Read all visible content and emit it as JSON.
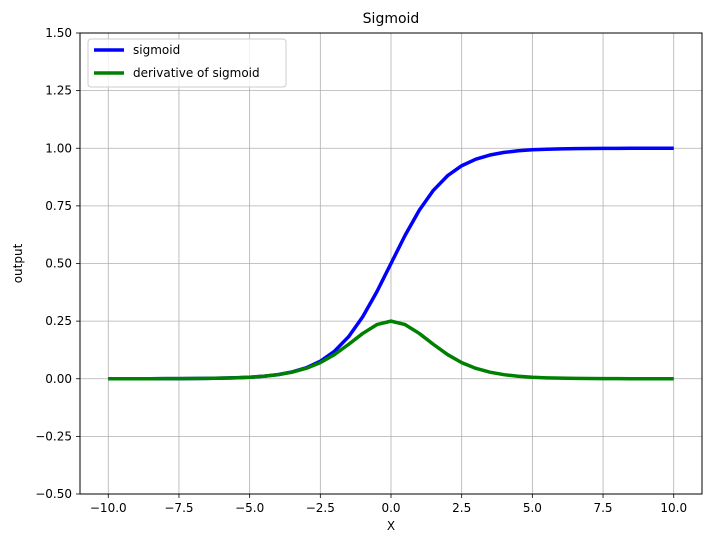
{
  "chart_data": {
    "type": "line",
    "title": "Sigmoid",
    "xlabel": "X",
    "ylabel": "output",
    "xlim": [
      -11.0,
      11.0
    ],
    "ylim": [
      -0.5,
      1.5
    ],
    "x_ticks": [
      -10.0,
      -7.5,
      -5.0,
      -2.5,
      0.0,
      2.5,
      5.0,
      7.5,
      10.0
    ],
    "x_tick_labels": [
      "−10.0",
      "−7.5",
      "−5.0",
      "−2.5",
      "0.0",
      "2.5",
      "5.0",
      "7.5",
      "10.0"
    ],
    "y_ticks": [
      -0.5,
      -0.25,
      0.0,
      0.25,
      0.5,
      0.75,
      1.0,
      1.25,
      1.5
    ],
    "y_tick_labels": [
      "−0.50",
      "−0.25",
      "0.00",
      "0.25",
      "0.50",
      "0.75",
      "1.00",
      "1.25",
      "1.50"
    ],
    "grid": true,
    "legend_position": "top-left",
    "x": [
      -10,
      -9.5,
      -9,
      -8.5,
      -8,
      -7.5,
      -7,
      -6.5,
      -6,
      -5.5,
      -5,
      -4.5,
      -4,
      -3.5,
      -3,
      -2.5,
      -2,
      -1.5,
      -1,
      -0.5,
      0,
      0.5,
      1,
      1.5,
      2,
      2.5,
      3,
      3.5,
      4,
      4.5,
      5,
      5.5,
      6,
      6.5,
      7,
      7.5,
      8,
      8.5,
      9,
      9.5,
      10
    ],
    "series": [
      {
        "name": "sigmoid",
        "color": "#0000ff",
        "values": [
          5e-05,
          7e-05,
          0.00012,
          0.0002,
          0.00034,
          0.00055,
          0.00091,
          0.0015,
          0.00247,
          0.00407,
          0.00669,
          0.01099,
          0.01799,
          0.02931,
          0.04743,
          0.07586,
          0.1192,
          0.18243,
          0.26894,
          0.37754,
          0.5,
          0.62246,
          0.73106,
          0.81757,
          0.8808,
          0.92414,
          0.95257,
          0.97069,
          0.98201,
          0.98901,
          0.99331,
          0.99593,
          0.99753,
          0.9985,
          0.99909,
          0.99945,
          0.99966,
          0.9998,
          0.99988,
          0.99993,
          0.99995
        ]
      },
      {
        "name": "derivative of sigmoid",
        "color": "#008000",
        "values": [
          5e-05,
          7e-05,
          0.00012,
          0.0002,
          0.00034,
          0.00055,
          0.00091,
          0.0015,
          0.00247,
          0.00405,
          0.00665,
          0.01087,
          0.01766,
          0.02845,
          0.04518,
          0.07011,
          0.10499,
          0.14915,
          0.19661,
          0.235,
          0.25,
          0.235,
          0.19661,
          0.14915,
          0.10499,
          0.07011,
          0.04518,
          0.02845,
          0.01766,
          0.01087,
          0.00665,
          0.00405,
          0.00247,
          0.0015,
          0.00091,
          0.00055,
          0.00034,
          0.0002,
          0.00012,
          7e-05,
          5e-05
        ]
      }
    ]
  }
}
